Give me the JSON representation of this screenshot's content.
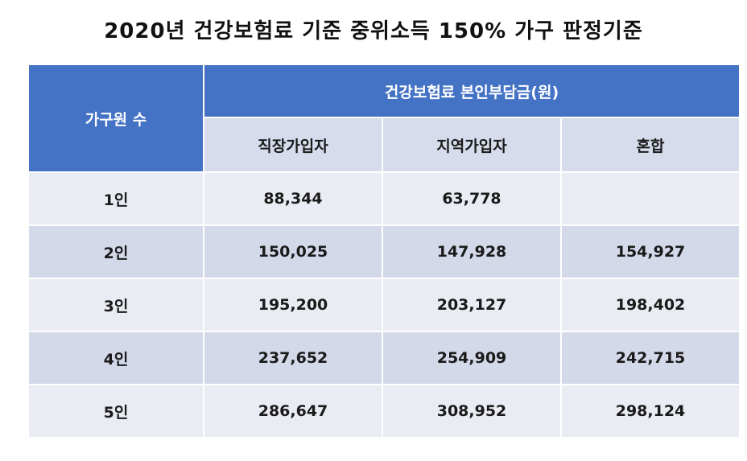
{
  "title": "2020년 건강보험료 기준 중위소득 150% 가구 판정기준",
  "table": {
    "row_header": "가구원 수",
    "group_header": "건강보험료 본인부담금(원)",
    "columns": [
      "직장가입자",
      "지역가입자",
      "혼합"
    ],
    "rows": [
      {
        "label": "1인",
        "values": [
          "88,344",
          "63,778",
          ""
        ]
      },
      {
        "label": "2인",
        "values": [
          "150,025",
          "147,928",
          "154,927"
        ]
      },
      {
        "label": "3인",
        "values": [
          "195,200",
          "203,127",
          "198,402"
        ]
      },
      {
        "label": "4인",
        "values": [
          "237,652",
          "254,909",
          "242,715"
        ]
      },
      {
        "label": "5인",
        "values": [
          "286,647",
          "308,952",
          "298,124"
        ]
      }
    ]
  },
  "colors": {
    "header_blue": "#4472c4",
    "subheader": "#d6dcec",
    "row_light": "#eaecf3",
    "row_dark": "#d4d9e9"
  }
}
